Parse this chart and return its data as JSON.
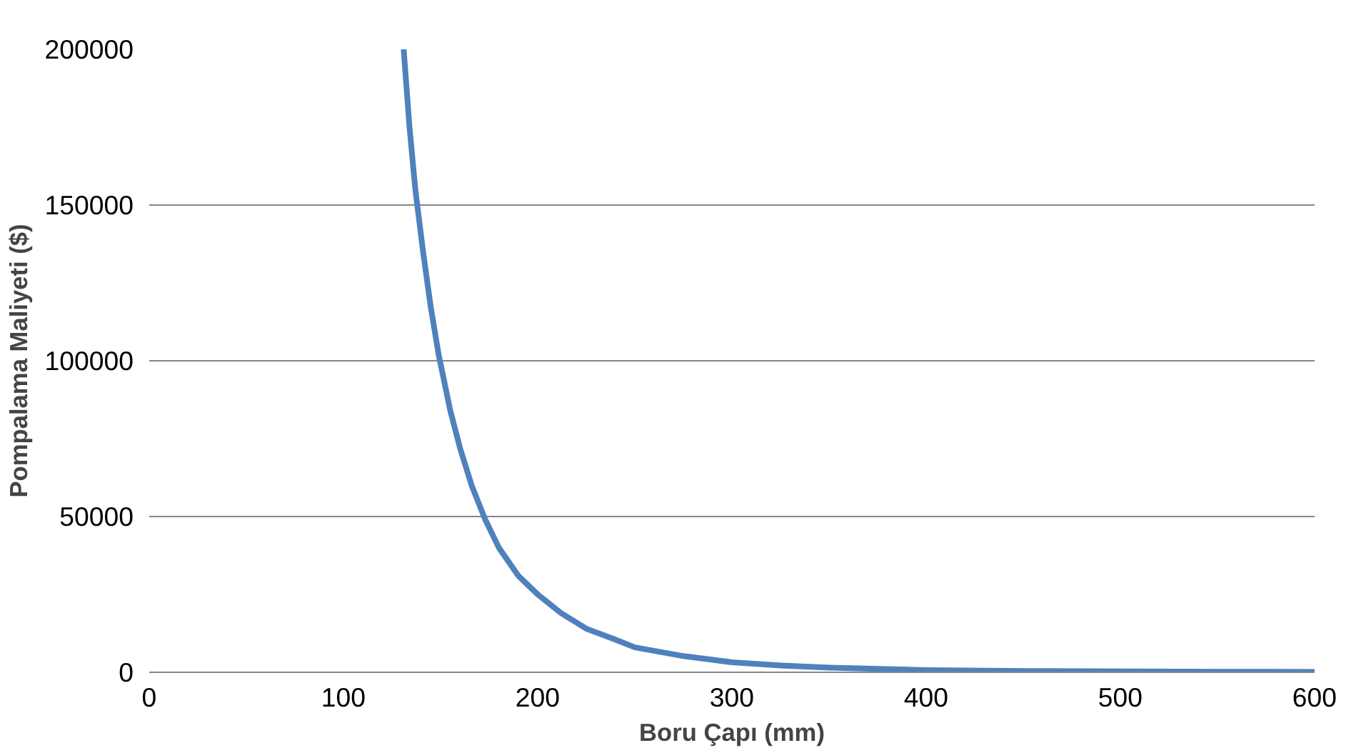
{
  "chart_data": {
    "type": "line",
    "xlabel": "Boru Çapı (mm)",
    "ylabel": "Pompalama Maliyeti ($)",
    "x": [
      131,
      134,
      137,
      141,
      145,
      149,
      155,
      160,
      166,
      173,
      180,
      190,
      200,
      212,
      225,
      240,
      250,
      275,
      300,
      325,
      350,
      400,
      450,
      500,
      550,
      600
    ],
    "series": [
      {
        "color": "#4f81bd",
        "values": [
          200000,
          175000,
          155000,
          135000,
          117000,
          102000,
          84000,
          72000,
          60000,
          49000,
          40000,
          31000,
          25000,
          19000,
          14000,
          10500,
          8000,
          5200,
          3200,
          2200,
          1500,
          700,
          400,
          300,
          200,
          100
        ]
      }
    ],
    "xlim": [
      0,
      600
    ],
    "ylim": [
      0,
      200000
    ],
    "xticks": [
      0,
      100,
      200,
      300,
      400,
      500,
      600
    ],
    "yticks": [
      0,
      50000,
      100000,
      150000,
      200000
    ],
    "grid": "y",
    "marker": "none",
    "line_style": "solid"
  }
}
